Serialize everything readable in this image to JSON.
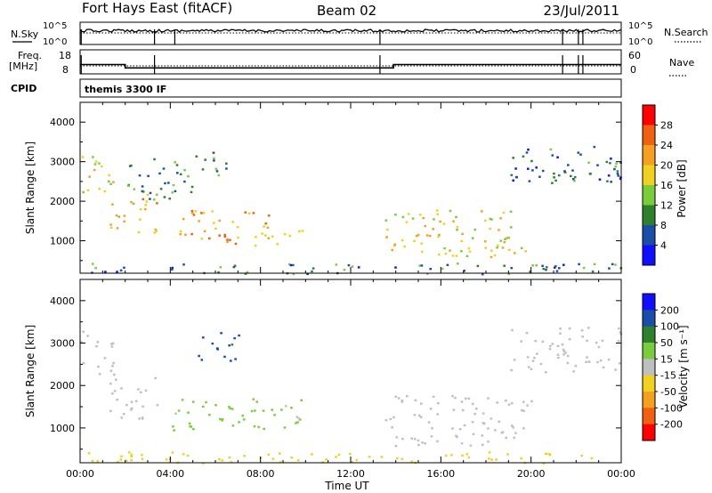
{
  "header": {
    "station": "Fort Hays East (fitACF)",
    "beam": "Beam 02",
    "date": "23/Jul/2011"
  },
  "strip_labels": {
    "nsky": "N.Sky",
    "nsearch": "N.Search",
    "freq_line1": "Freq.",
    "freq_line2": "[MHz]",
    "nave": "Nave",
    "cpid": "CPID",
    "cpid_value": "themis 3300 IF"
  },
  "chart_data": [
    {
      "type": "line",
      "name": "noise",
      "left_ticks": [
        "10^5",
        "10^0"
      ],
      "right_ticks": [
        "10^5",
        "10^0"
      ],
      "left_label": "N.Sky",
      "right_label": "N.Search",
      "drop_hours": [
        0.05,
        3.3,
        4.2,
        13.3,
        21.4,
        22.1,
        22.3
      ]
    },
    {
      "type": "line",
      "name": "frequency",
      "left_ticks": [
        "18",
        "8"
      ],
      "right_ticks": [
        "60",
        "0"
      ],
      "left_label_lines": [
        "Freq.",
        "[MHz]"
      ],
      "right_label": "Nave",
      "freq_steps": [
        {
          "from_hour": 0.0,
          "to_hour": 2.0,
          "freq_mhz": 11.9
        },
        {
          "from_hour": 2.0,
          "to_hour": 13.9,
          "freq_mhz": 10.5
        },
        {
          "from_hour": 13.9,
          "to_hour": 24.0,
          "freq_mhz": 11.9
        }
      ],
      "freq_range": [
        8,
        18
      ],
      "nave_range": [
        0,
        60
      ],
      "drop_hours": [
        0.05,
        3.3,
        13.3,
        21.4,
        22.1,
        22.3
      ]
    },
    {
      "type": "heatmap",
      "name": "power",
      "ylabel": "Slant Range [km]",
      "xlim_hours": [
        0,
        24
      ],
      "ylim_km": [
        180,
        4500
      ],
      "yticks": [
        1000,
        2000,
        3000,
        4000
      ],
      "colorbar": {
        "label": "Power [dB]",
        "ticks": [
          "28",
          "24",
          "20",
          "16",
          "12",
          "8",
          "4"
        ],
        "colors": [
          "#1010ff",
          "#1a4da8",
          "#2e7f2e",
          "#7acc3c",
          "#f0d020",
          "#f5a020",
          "#f06010",
          "#ff0000"
        ]
      },
      "echo_regions": [
        {
          "h0": 0.0,
          "h1": 1.5,
          "r0": 2250,
          "r1": 3300,
          "power_db": 18
        },
        {
          "h0": 1.2,
          "h1": 3.5,
          "r0": 1200,
          "r1": 2200,
          "power_db": 20
        },
        {
          "h0": 2.0,
          "h1": 5.0,
          "r0": 2000,
          "r1": 3100,
          "power_db": 10
        },
        {
          "h0": 4.2,
          "h1": 8.5,
          "r0": 900,
          "r1": 1800,
          "power_db": 22
        },
        {
          "h0": 8.0,
          "h1": 10.0,
          "r0": 900,
          "r1": 1300,
          "power_db": 14
        },
        {
          "h0": 5.0,
          "h1": 6.5,
          "r0": 2600,
          "r1": 3300,
          "power_db": 10
        },
        {
          "h0": 13.5,
          "h1": 20.0,
          "r0": 600,
          "r1": 1800,
          "power_db": 18
        },
        {
          "h0": 19.0,
          "h1": 24.0,
          "r0": 2300,
          "r1": 3400,
          "power_db": 8
        },
        {
          "h0": 0.0,
          "h1": 24.0,
          "r0": 180,
          "r1": 450,
          "power_db": 8
        }
      ]
    },
    {
      "type": "heatmap",
      "name": "velocity",
      "ylabel": "Slant Range [km]",
      "xlabel": "Time UT",
      "xticks": [
        "00:00",
        "04:00",
        "08:00",
        "12:00",
        "16:00",
        "20:00",
        "00:00"
      ],
      "xlim_hours": [
        0,
        24
      ],
      "ylim_km": [
        180,
        4500
      ],
      "yticks": [
        1000,
        2000,
        3000,
        4000
      ],
      "colorbar": {
        "label": "Velocity [m s⁻¹]",
        "ticks": [
          "200",
          "100",
          "50",
          "15",
          "-15",
          "-50",
          "-100",
          "-200"
        ],
        "colors": [
          "#ff0000",
          "#f06010",
          "#f5a020",
          "#f0d020",
          "#bfbfbf",
          "#7acc3c",
          "#2e7f2e",
          "#1a4da8",
          "#1010ff"
        ]
      },
      "echo_regions": [
        {
          "h0": 0.0,
          "h1": 1.5,
          "r0": 2250,
          "r1": 3300,
          "velocity_ms": 0
        },
        {
          "h0": 1.2,
          "h1": 3.5,
          "r0": 1200,
          "r1": 2200,
          "velocity_ms": 0
        },
        {
          "h0": 4.0,
          "h1": 10.0,
          "r0": 950,
          "r1": 1700,
          "velocity_ms": 40
        },
        {
          "h0": 5.0,
          "h1": 7.0,
          "r0": 2600,
          "r1": 3300,
          "velocity_ms": 150
        },
        {
          "h0": 13.5,
          "h1": 20.0,
          "r0": 600,
          "r1": 1800,
          "velocity_ms": 0
        },
        {
          "h0": 19.0,
          "h1": 24.0,
          "r0": 2300,
          "r1": 3400,
          "velocity_ms": 0
        },
        {
          "h0": 0.0,
          "h1": 24.0,
          "r0": 180,
          "r1": 450,
          "velocity_ms": -60
        }
      ]
    }
  ]
}
